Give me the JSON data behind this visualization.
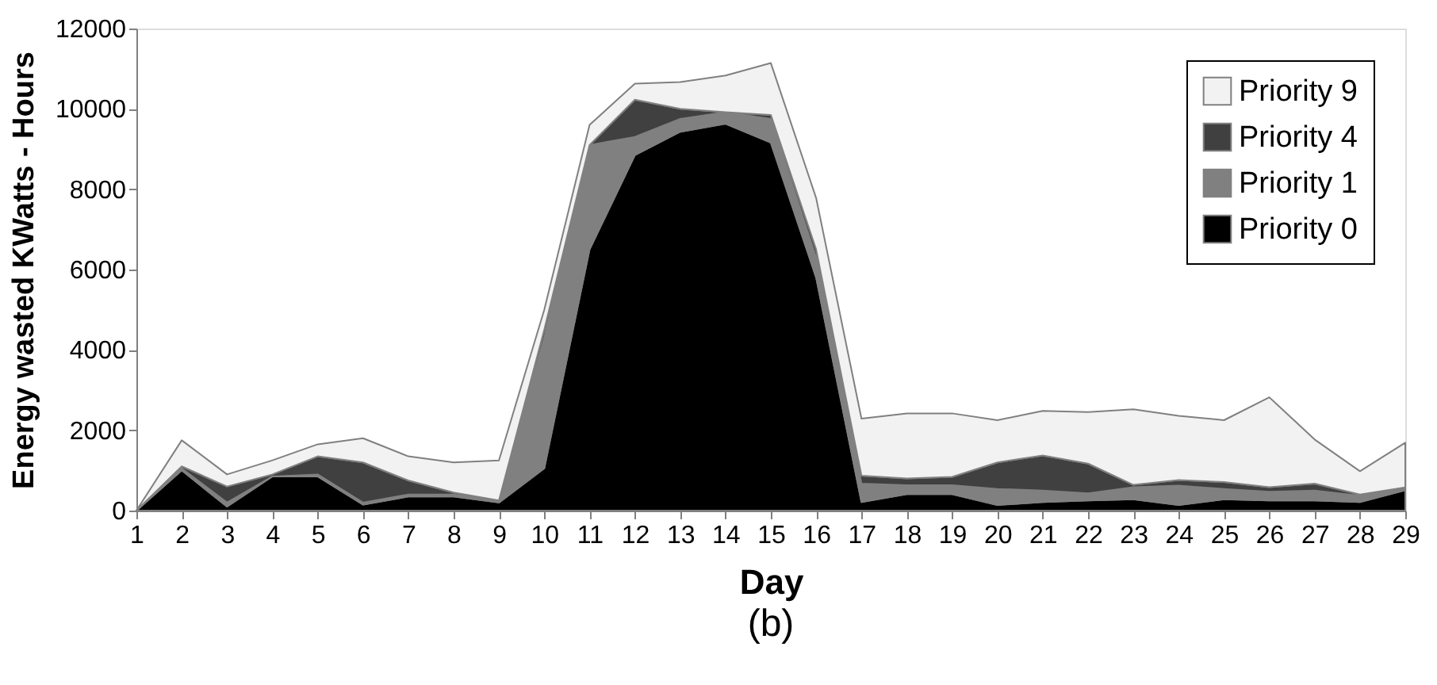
{
  "chart_data": {
    "type": "area",
    "stacked": true,
    "xlabel": "Day",
    "ylabel": "Energy wasted KWatts - Hours",
    "annotations": [
      "(b)"
    ],
    "x": [
      1,
      2,
      3,
      4,
      5,
      6,
      7,
      8,
      9,
      10,
      11,
      12,
      13,
      14,
      15,
      16,
      17,
      18,
      19,
      20,
      21,
      22,
      23,
      24,
      25,
      26,
      27,
      28,
      29
    ],
    "xlim": [
      1,
      29
    ],
    "xticks": [
      1,
      2,
      3,
      4,
      5,
      6,
      7,
      8,
      9,
      10,
      11,
      12,
      13,
      14,
      15,
      16,
      17,
      18,
      19,
      20,
      21,
      22,
      23,
      24,
      25,
      26,
      27,
      28,
      29
    ],
    "ylim": [
      0,
      12000
    ],
    "yticks": [
      0,
      2000,
      4000,
      6000,
      8000,
      10000,
      12000
    ],
    "grid": false,
    "legend": "top right",
    "series": [
      {
        "name": "Priority 0",
        "color": "#000000",
        "values": [
          0,
          1000,
          100,
          850,
          850,
          150,
          350,
          350,
          200,
          1050,
          6500,
          8850,
          9430,
          9630,
          9160,
          5800,
          210,
          410,
          410,
          140,
          210,
          250,
          280,
          140,
          280,
          250,
          250,
          210,
          510
        ]
      },
      {
        "name": "Priority 1",
        "color": "#808080",
        "values": [
          0,
          50,
          100,
          0,
          50,
          50,
          50,
          50,
          50,
          3250,
          2600,
          450,
          320,
          290,
          590,
          500,
          460,
          220,
          220,
          400,
          290,
          180,
          300,
          480,
          260,
          220,
          250,
          160,
          30
        ]
      },
      {
        "name": "Priority 4",
        "color": "#404040",
        "values": [
          0,
          50,
          400,
          50,
          450,
          1000,
          350,
          50,
          0,
          200,
          0,
          930,
          250,
          0,
          100,
          200,
          200,
          170,
          210,
          660,
          870,
          740,
          60,
          140,
          170,
          110,
          170,
          30,
          40
        ]
      },
      {
        "name": "Priority 9",
        "color": "#f2f2f2",
        "values": [
          0,
          650,
          300,
          350,
          300,
          600,
          600,
          750,
          1000,
          500,
          500,
          400,
          670,
          910,
          1290,
          1280,
          1420,
          1620,
          1580,
          1050,
          1110,
          1280,
          1880,
          1600,
          1540,
          2240,
          1100,
          580,
          1110
        ]
      }
    ]
  }
}
